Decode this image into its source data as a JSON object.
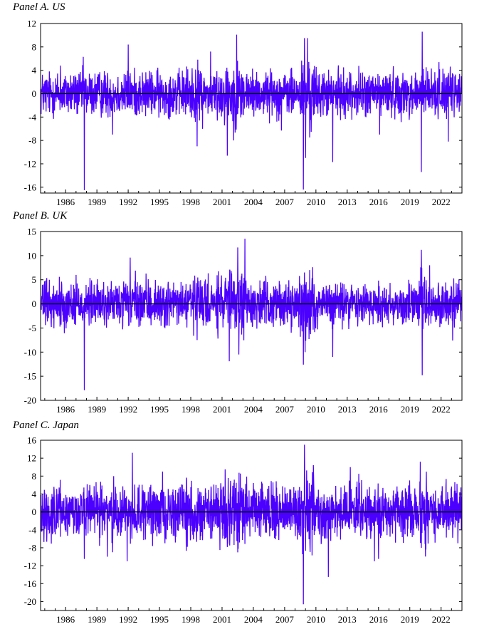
{
  "colors": {
    "series": "#4B00FF",
    "axis": "#000000",
    "zero_line": "#000000"
  },
  "chart_data": [
    {
      "type": "line",
      "title": "Panel A. US",
      "xlabel": "",
      "ylabel": "",
      "xlim": [
        1983.6,
        2024.0
      ],
      "ylim": [
        -17,
        12
      ],
      "yticks": [
        12,
        8,
        4,
        0,
        -4,
        -8,
        -12,
        -16
      ],
      "xticks": [
        1986,
        1989,
        1992,
        1995,
        1998,
        2001,
        2004,
        2007,
        2010,
        2013,
        2016,
        2019,
        2022
      ],
      "grid": false,
      "zero_line": true,
      "base_amplitude": 1.9,
      "spikes": [
        {
          "x": 1987.8,
          "y": -16.5
        },
        {
          "x": 1987.7,
          "y": 6.3
        },
        {
          "x": 1992.0,
          "y": 8.4
        },
        {
          "x": 1990.5,
          "y": -7.0
        },
        {
          "x": 1998.6,
          "y": -9.0
        },
        {
          "x": 2001.5,
          "y": -10.6
        },
        {
          "x": 2002.4,
          "y": 10.1
        },
        {
          "x": 2002.1,
          "y": -8.0
        },
        {
          "x": 1999.9,
          "y": 7.2
        },
        {
          "x": 2008.8,
          "y": -16.4
        },
        {
          "x": 2008.9,
          "y": 9.5
        },
        {
          "x": 2009.2,
          "y": 9.5
        },
        {
          "x": 2009.0,
          "y": -11.0
        },
        {
          "x": 2009.4,
          "y": -7.5
        },
        {
          "x": 2011.6,
          "y": -11.7
        },
        {
          "x": 2016.1,
          "y": -7.0
        },
        {
          "x": 2020.2,
          "y": 10.6
        },
        {
          "x": 2020.1,
          "y": -13.4
        },
        {
          "x": 2022.7,
          "y": -8.2
        },
        {
          "x": 2021.8,
          "y": 5.4
        },
        {
          "x": 2006.7,
          "y": -6.3
        },
        {
          "x": 1985.5,
          "y": 4.8
        }
      ]
    },
    {
      "type": "line",
      "title": "Panel B. UK",
      "xlabel": "",
      "ylabel": "",
      "xlim": [
        1983.6,
        2024.0
      ],
      "ylim": [
        -20,
        15
      ],
      "yticks": [
        15,
        10,
        5,
        0,
        -5,
        -10,
        -15,
        -20
      ],
      "xticks": [
        1986,
        1989,
        1992,
        1995,
        1998,
        2001,
        2004,
        2007,
        2010,
        2013,
        2016,
        2019,
        2022
      ],
      "grid": false,
      "zero_line": true,
      "base_amplitude": 2.3,
      "spikes": [
        {
          "x": 1987.8,
          "y": -17.9
        },
        {
          "x": 1985.4,
          "y": 5.6
        },
        {
          "x": 1987.0,
          "y": 6.0
        },
        {
          "x": 1992.2,
          "y": 9.6
        },
        {
          "x": 1992.7,
          "y": 6.9
        },
        {
          "x": 2002.5,
          "y": 11.7
        },
        {
          "x": 2003.2,
          "y": 13.5
        },
        {
          "x": 2002.6,
          "y": -10.5
        },
        {
          "x": 2001.7,
          "y": -11.9
        },
        {
          "x": 2008.8,
          "y": -12.6
        },
        {
          "x": 2008.9,
          "y": 6.5
        },
        {
          "x": 2009.4,
          "y": 7.0
        },
        {
          "x": 2011.6,
          "y": -11.0
        },
        {
          "x": 2020.1,
          "y": 11.2
        },
        {
          "x": 2020.2,
          "y": -14.8
        },
        {
          "x": 2020.9,
          "y": 8.0
        },
        {
          "x": 2023.1,
          "y": -7.6
        },
        {
          "x": 1998.6,
          "y": -7.5
        }
      ]
    },
    {
      "type": "line",
      "title": "Panel C. Japan",
      "xlabel": "",
      "ylabel": "",
      "xlim": [
        1983.6,
        2024.0
      ],
      "ylim": [
        -22,
        16
      ],
      "yticks": [
        16,
        12,
        8,
        4,
        0,
        -4,
        -8,
        -12,
        -16,
        -20
      ],
      "xticks": [
        1986,
        1989,
        1992,
        1995,
        1998,
        2001,
        2004,
        2007,
        2010,
        2013,
        2016,
        2019,
        2022
      ],
      "grid": false,
      "zero_line": true,
      "base_amplitude": 2.8,
      "spikes": [
        {
          "x": 1987.8,
          "y": -10.5
        },
        {
          "x": 1990.0,
          "y": -10.0
        },
        {
          "x": 1990.5,
          "y": -9.0
        },
        {
          "x": 1992.4,
          "y": 13.2
        },
        {
          "x": 1991.9,
          "y": -11.0
        },
        {
          "x": 1990.6,
          "y": 8.0
        },
        {
          "x": 1995.3,
          "y": 9.0
        },
        {
          "x": 2001.3,
          "y": 9.5
        },
        {
          "x": 2000.8,
          "y": -8.5
        },
        {
          "x": 2008.8,
          "y": -20.6
        },
        {
          "x": 2008.9,
          "y": 15.0
        },
        {
          "x": 2009.2,
          "y": 7.0
        },
        {
          "x": 2011.2,
          "y": -14.5
        },
        {
          "x": 2013.3,
          "y": 10.0
        },
        {
          "x": 2014.1,
          "y": 8.5
        },
        {
          "x": 2016.0,
          "y": -10.5
        },
        {
          "x": 2015.6,
          "y": -11.0
        },
        {
          "x": 2020.0,
          "y": 11.2
        },
        {
          "x": 2020.1,
          "y": -8.0
        },
        {
          "x": 2023.6,
          "y": -7.0
        },
        {
          "x": 1985.0,
          "y": -5.0
        }
      ]
    }
  ]
}
